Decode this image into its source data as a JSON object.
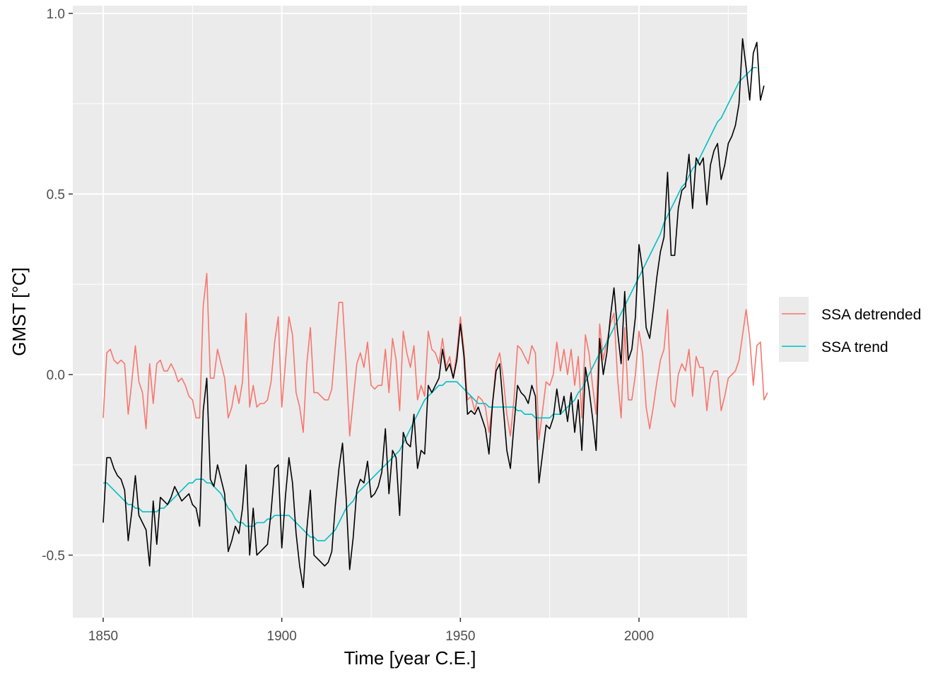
{
  "chart_data": {
    "type": "line",
    "xlabel": "Time [year C.E.]",
    "ylabel": "GMST [°C]",
    "xlim": [
      1842.4,
      2230.6
    ],
    "ylim": [
      -0.67,
      1.02
    ],
    "x_ticks": [
      1850,
      1900,
      1950,
      2000
    ],
    "x_tick_labels": [
      "1850",
      "1900",
      "1950",
      "2000"
    ],
    "y_ticks": [
      -0.5,
      0.0,
      0.5,
      1.0
    ],
    "y_tick_labels": [
      "-0.5",
      "0.0",
      "0.5",
      "1.0"
    ],
    "x_start": 1850,
    "grid": true,
    "legend_position": "right",
    "colors": {
      "panel_background": "#EBEBEB",
      "grid": "#FFFFFF",
      "observed": "#000000",
      "detrended": "#F8766D",
      "trend": "#00BFC4",
      "axis_text": "#4D4D4D",
      "title_text": "#000000"
    },
    "series": [
      {
        "name": "",
        "key": "observed",
        "values": [
          -0.41,
          -0.23,
          -0.23,
          -0.27,
          -0.29,
          -0.29,
          -0.32,
          -0.46,
          -0.39,
          -0.28,
          -0.38,
          -0.4,
          -0.43,
          -0.53,
          -0.35,
          -0.47,
          -0.34,
          -0.35,
          -0.36,
          -0.35,
          -0.31,
          -0.32,
          -0.35,
          -0.39,
          -0.33,
          -0.35,
          -0.37,
          -0.42,
          -0.1,
          -0.01,
          -0.27,
          -0.3,
          -0.25,
          -0.28,
          -0.33,
          -0.48,
          -0.46,
          -0.41,
          -0.44,
          -0.37,
          -0.25,
          -0.5,
          -0.38,
          -0.5,
          -0.49,
          -0.48,
          -0.47,
          -0.38,
          -0.26,
          -0.25,
          -0.48,
          -0.34,
          -0.23,
          -0.3,
          -0.44,
          -0.53,
          -0.59,
          -0.43,
          -0.32,
          -0.5,
          -0.52,
          -0.52,
          -0.53,
          -0.53,
          -0.49,
          -0.36,
          -0.25,
          -0.19,
          -0.34,
          -0.54,
          -0.46,
          -0.32,
          -0.29,
          -0.3,
          -0.24,
          -0.34,
          -0.33,
          -0.31,
          -0.27,
          -0.13,
          -0.33,
          -0.21,
          -0.23,
          -0.39,
          -0.16,
          -0.19,
          -0.2,
          -0.11,
          -0.26,
          -0.21,
          -0.22,
          -0.03,
          -0.05,
          -0.03,
          -0.01,
          0.07,
          0.01,
          0.03,
          0.0,
          0.04,
          0.14,
          0.05,
          -0.11,
          -0.09,
          -0.11,
          -0.08,
          -0.12,
          -0.14,
          -0.22,
          -0.08,
          0.01,
          0.03,
          -0.09,
          -0.21,
          -0.26,
          -0.14,
          -0.03,
          -0.04,
          -0.06,
          -0.08,
          -0.03,
          -0.06,
          -0.3,
          -0.22,
          -0.13,
          -0.15,
          -0.12,
          -0.04,
          -0.11,
          -0.06,
          -0.12,
          -0.05,
          -0.15,
          -0.07,
          -0.21,
          0.02,
          -0.04,
          -0.12,
          -0.21,
          0.1,
          0.0,
          0.07,
          0.18,
          0.24,
          0.11,
          0.04,
          0.23,
          0.04,
          0.06,
          0.16,
          0.35,
          0.29,
          0.12,
          0.1,
          0.17,
          0.27,
          0.34,
          0.4,
          0.56,
          0.33,
          0.32,
          0.46,
          0.51,
          0.52,
          0.61,
          0.46,
          0.6,
          0.57,
          0.6,
          0.47,
          0.58,
          0.62,
          0.64,
          0.53,
          0.58,
          0.64,
          0.66,
          0.7,
          0.74,
          0.82,
          0.86,
          0.88,
          0.82,
          0.76,
          0.84,
          0.86,
          0.78,
          0.8
        ],
        "display_values": [
          -0.41,
          -0.23,
          -0.23,
          -0.26,
          -0.28,
          -0.29,
          -0.32,
          -0.46,
          -0.38,
          -0.28,
          -0.39,
          -0.41,
          -0.43,
          -0.53,
          -0.35,
          -0.47,
          -0.34,
          -0.35,
          -0.36,
          -0.34,
          -0.31,
          -0.33,
          -0.35,
          -0.34,
          -0.33,
          -0.36,
          -0.37,
          -0.42,
          -0.1,
          -0.01,
          -0.29,
          -0.31,
          -0.25,
          -0.29,
          -0.33,
          -0.49,
          -0.46,
          -0.42,
          -0.44,
          -0.37,
          -0.25,
          -0.5,
          -0.37,
          -0.5,
          -0.49,
          -0.48,
          -0.47,
          -0.38,
          -0.26,
          -0.25,
          -0.48,
          -0.34,
          -0.23,
          -0.3,
          -0.44,
          -0.53,
          -0.59,
          -0.43,
          -0.32,
          -0.5,
          -0.51,
          -0.52,
          -0.53,
          -0.52,
          -0.49,
          -0.36,
          -0.26,
          -0.19,
          -0.34,
          -0.54,
          -0.45,
          -0.32,
          -0.29,
          -0.3,
          -0.24,
          -0.34,
          -0.33,
          -0.31,
          -0.27,
          -0.15,
          -0.33,
          -0.21,
          -0.23,
          -0.39,
          -0.16,
          -0.19,
          -0.2,
          -0.11,
          -0.26,
          -0.21,
          -0.22,
          -0.03,
          -0.05,
          -0.03,
          -0.01,
          0.07,
          0.01,
          0.03,
          -0.01,
          0.04,
          0.14,
          0.05,
          -0.11,
          -0.1,
          -0.11,
          -0.09,
          -0.12,
          -0.15,
          -0.22,
          -0.08,
          0.01,
          0.03,
          -0.09,
          -0.21,
          -0.26,
          -0.14,
          -0.03,
          -0.05,
          -0.06,
          -0.08,
          -0.03,
          -0.06,
          -0.3,
          -0.22,
          -0.14,
          -0.15,
          -0.12,
          -0.04,
          -0.11,
          -0.06,
          -0.13,
          -0.05,
          -0.16,
          -0.07,
          -0.21,
          0.02,
          -0.04,
          -0.12,
          -0.21,
          0.1,
          0.0,
          0.06,
          0.16,
          0.24,
          0.12,
          0.03,
          0.23,
          0.04,
          0.07,
          0.16,
          0.36,
          0.29,
          0.13,
          0.1,
          0.18,
          0.27,
          0.34,
          0.38,
          0.56,
          0.33,
          0.33,
          0.46,
          0.51,
          0.52,
          0.61,
          0.46,
          0.6,
          0.58,
          0.6,
          0.47,
          0.58,
          0.62,
          0.64,
          0.54,
          0.58,
          0.64,
          0.66,
          0.69,
          0.75,
          0.93,
          0.85,
          0.76,
          0.89,
          0.92,
          0.76,
          0.8
        ]
      },
      {
        "name": "SSA detrended",
        "key": "detrended",
        "values": [
          -0.12,
          0.06,
          0.07,
          0.05,
          0.04,
          0.04,
          0.03,
          -0.11,
          -0.03,
          0.08,
          -0.02,
          -0.05,
          -0.15,
          0.03,
          -0.08,
          0.03,
          0.04,
          0.01,
          0.01,
          0.03,
          0.01,
          -0.03,
          0.0,
          -0.01,
          -0.04,
          -0.06,
          -0.07,
          -0.12,
          0.19,
          0.28,
          -0.0,
          -0.01,
          0.07,
          0.03,
          -0.01,
          -0.13,
          -0.1,
          -0.04,
          -0.08,
          -0.02,
          0.16,
          -0.09,
          -0.03,
          -0.09,
          -0.08,
          -0.08,
          -0.07,
          -0.02,
          0.09,
          0.16,
          -0.08,
          0.03,
          0.16,
          0.11,
          -0.05,
          -0.09,
          -0.16,
          0.03,
          0.13,
          -0.05,
          -0.06,
          -0.07,
          -0.09,
          -0.08,
          -0.04,
          0.08,
          0.18,
          0.2,
          0.03,
          -0.17,
          -0.07,
          0.03,
          0.06,
          0.03,
          0.09,
          -0.04,
          -0.02,
          -0.03,
          -0.03,
          0.07,
          -0.05,
          0.1,
          0.04,
          -0.1,
          0.12,
          0.06,
          0.02,
          0.08,
          -0.07,
          -0.03,
          -0.06,
          0.12,
          0.07,
          0.06,
          0.03,
          0.08,
          0.02,
          0.05,
          -0.01,
          0.06,
          0.16,
          0.07,
          -0.07,
          -0.06,
          -0.1,
          -0.06,
          -0.07,
          -0.09,
          -0.16,
          -0.08,
          0.04,
          0.06,
          -0.01,
          -0.11,
          -0.17,
          -0.07,
          0.08,
          0.07,
          0.05,
          0.03,
          0.08,
          0.07,
          -0.18,
          -0.1,
          -0.02,
          -0.03,
          0.0,
          0.09,
          0.01,
          0.07,
          0.0,
          0.07,
          -0.03,
          0.05,
          -0.12,
          0.11,
          0.06,
          -0.03,
          -0.11,
          0.14,
          0.04,
          0.09,
          0.14,
          0.17,
          -0.0,
          -0.12,
          0.13,
          -0.07,
          -0.07,
          0.0,
          0.12,
          0.06,
          -0.09,
          -0.15,
          -0.09,
          -0.02,
          0.04,
          0.07,
          0.15,
          -0.07,
          -0.09,
          0.0,
          0.03,
          0.01,
          0.07,
          -0.06,
          0.05,
          0.02,
          0.02,
          -0.1,
          -0.01,
          0.01,
          0.01,
          -0.1,
          -0.06,
          -0.01,
          -0.0,
          0.01,
          0.04,
          0.11,
          0.13,
          0.09,
          0.01,
          -0.05,
          0.01,
          0.02,
          -0.07,
          -0.05
        ],
        "display_values": [
          -0.12,
          0.06,
          0.07,
          0.04,
          0.03,
          0.04,
          0.03,
          -0.11,
          -0.02,
          0.08,
          -0.02,
          -0.05,
          -0.15,
          0.03,
          -0.08,
          0.03,
          0.04,
          0.01,
          0.01,
          0.03,
          0.01,
          -0.02,
          -0.01,
          -0.03,
          -0.06,
          -0.07,
          -0.12,
          -0.12,
          0.19,
          0.28,
          -0.01,
          -0.01,
          0.07,
          0.03,
          -0.01,
          -0.12,
          -0.09,
          -0.03,
          -0.08,
          -0.02,
          0.17,
          -0.09,
          -0.03,
          -0.09,
          -0.08,
          -0.08,
          -0.07,
          -0.02,
          0.09,
          0.16,
          -0.09,
          0.03,
          0.16,
          0.11,
          -0.05,
          -0.09,
          -0.16,
          0.03,
          0.13,
          -0.05,
          -0.05,
          -0.06,
          -0.07,
          -0.07,
          -0.04,
          0.08,
          0.2,
          0.2,
          0.03,
          -0.17,
          -0.07,
          0.03,
          0.06,
          0.02,
          0.09,
          -0.03,
          -0.04,
          -0.03,
          -0.03,
          0.07,
          -0.05,
          0.1,
          0.04,
          -0.1,
          0.12,
          0.06,
          0.02,
          0.08,
          -0.07,
          -0.03,
          -0.06,
          0.12,
          0.07,
          0.06,
          0.03,
          0.1,
          0.02,
          0.05,
          -0.01,
          0.06,
          0.16,
          0.07,
          -0.07,
          -0.06,
          -0.1,
          -0.06,
          -0.07,
          -0.09,
          -0.16,
          -0.08,
          0.03,
          0.06,
          -0.01,
          -0.11,
          -0.17,
          -0.07,
          0.08,
          0.07,
          0.05,
          0.03,
          0.08,
          0.06,
          -0.18,
          -0.1,
          -0.02,
          -0.03,
          0.0,
          0.09,
          0.01,
          0.07,
          0.0,
          0.07,
          -0.03,
          0.05,
          -0.12,
          0.11,
          0.06,
          -0.03,
          -0.11,
          0.14,
          0.04,
          0.09,
          0.14,
          0.17,
          -0.01,
          -0.12,
          0.13,
          -0.07,
          -0.07,
          0.0,
          0.12,
          0.06,
          -0.09,
          -0.15,
          -0.09,
          -0.02,
          0.04,
          0.07,
          0.18,
          -0.07,
          -0.09,
          0.0,
          0.03,
          0.01,
          0.07,
          -0.06,
          0.05,
          0.02,
          0.02,
          -0.1,
          -0.01,
          0.01,
          0.01,
          -0.1,
          -0.06,
          -0.01,
          0.0,
          0.01,
          0.04,
          0.11,
          0.18,
          0.1,
          -0.03,
          0.08,
          0.09,
          -0.07,
          -0.05
        ]
      },
      {
        "name": "SSA trend",
        "key": "trend",
        "values": [
          -0.3,
          -0.3,
          -0.31,
          -0.32,
          -0.33,
          -0.34,
          -0.35,
          -0.36,
          -0.36,
          -0.37,
          -0.37,
          -0.38,
          -0.38,
          -0.38,
          -0.38,
          -0.38,
          -0.37,
          -0.37,
          -0.36,
          -0.36,
          -0.35,
          -0.34,
          -0.33,
          -0.32,
          -0.31,
          -0.3,
          -0.3,
          -0.29,
          -0.29,
          -0.29,
          -0.3,
          -0.3,
          -0.31,
          -0.33,
          -0.34,
          -0.36,
          -0.38,
          -0.39,
          -0.41,
          -0.41,
          -0.42,
          -0.42,
          -0.42,
          -0.42,
          -0.41,
          -0.41,
          -0.4,
          -0.4,
          -0.39,
          -0.39,
          -0.39,
          -0.39,
          -0.39,
          -0.4,
          -0.41,
          -0.42,
          -0.43,
          -0.44,
          -0.45,
          -0.45,
          -0.46,
          -0.46,
          -0.46,
          -0.45,
          -0.44,
          -0.43,
          -0.41,
          -0.39,
          -0.37,
          -0.36,
          -0.35,
          -0.33,
          -0.32,
          -0.31,
          -0.3,
          -0.29,
          -0.28,
          -0.27,
          -0.26,
          -0.25,
          -0.24,
          -0.23,
          -0.22,
          -0.21,
          -0.19,
          -0.17,
          -0.15,
          -0.13,
          -0.11,
          -0.09,
          -0.07,
          -0.06,
          -0.05,
          -0.04,
          -0.03,
          -0.03,
          -0.02,
          -0.02,
          -0.02,
          -0.02,
          -0.03,
          -0.04,
          -0.05,
          -0.06,
          -0.07,
          -0.08,
          -0.08,
          -0.08,
          -0.09,
          -0.09,
          -0.09,
          -0.09,
          -0.09,
          -0.09,
          -0.09,
          -0.09,
          -0.1,
          -0.1,
          -0.11,
          -0.11,
          -0.11,
          -0.12,
          -0.12,
          -0.12,
          -0.12,
          -0.12,
          -0.11,
          -0.11,
          -0.11,
          -0.1,
          -0.09,
          -0.08,
          -0.07,
          -0.05,
          -0.04,
          -0.02,
          0.0,
          0.02,
          0.04,
          0.06,
          0.07,
          0.09,
          0.11,
          0.13,
          0.15,
          0.17,
          0.19,
          0.21,
          0.23,
          0.25,
          0.27,
          0.29,
          0.31,
          0.33,
          0.35,
          0.37,
          0.39,
          0.42,
          0.44,
          0.46,
          0.48,
          0.5,
          0.52,
          0.53,
          0.55,
          0.57,
          0.58,
          0.6,
          0.62,
          0.64,
          0.66,
          0.68,
          0.7,
          0.71,
          0.73,
          0.75,
          0.77,
          0.79,
          0.81,
          0.82,
          0.83,
          0.84,
          0.85,
          0.85
        ],
        "display_values": [
          -0.3,
          -0.3,
          -0.31,
          -0.32,
          -0.33,
          -0.34,
          -0.35,
          -0.36,
          -0.36,
          -0.37,
          -0.37,
          -0.38,
          -0.38,
          -0.38,
          -0.38,
          -0.38,
          -0.37,
          -0.37,
          -0.36,
          -0.35,
          -0.34,
          -0.33,
          -0.32,
          -0.31,
          -0.3,
          -0.3,
          -0.29,
          -0.29,
          -0.29,
          -0.3,
          -0.3,
          -0.31,
          -0.32,
          -0.33,
          -0.35,
          -0.37,
          -0.38,
          -0.4,
          -0.41,
          -0.41,
          -0.42,
          -0.42,
          -0.42,
          -0.41,
          -0.41,
          -0.41,
          -0.4,
          -0.4,
          -0.39,
          -0.39,
          -0.39,
          -0.39,
          -0.39,
          -0.4,
          -0.41,
          -0.42,
          -0.43,
          -0.44,
          -0.45,
          -0.45,
          -0.46,
          -0.46,
          -0.46,
          -0.45,
          -0.44,
          -0.43,
          -0.41,
          -0.39,
          -0.37,
          -0.36,
          -0.35,
          -0.33,
          -0.32,
          -0.31,
          -0.3,
          -0.29,
          -0.28,
          -0.27,
          -0.26,
          -0.25,
          -0.24,
          -0.23,
          -0.22,
          -0.21,
          -0.19,
          -0.17,
          -0.15,
          -0.13,
          -0.11,
          -0.09,
          -0.07,
          -0.06,
          -0.05,
          -0.04,
          -0.03,
          -0.03,
          -0.02,
          -0.02,
          -0.02,
          -0.02,
          -0.03,
          -0.04,
          -0.05,
          -0.06,
          -0.07,
          -0.08,
          -0.08,
          -0.08,
          -0.09,
          -0.09,
          -0.09,
          -0.09,
          -0.09,
          -0.09,
          -0.09,
          -0.09,
          -0.1,
          -0.1,
          -0.11,
          -0.11,
          -0.11,
          -0.12,
          -0.12,
          -0.12,
          -0.12,
          -0.12,
          -0.11,
          -0.11,
          -0.11,
          -0.1,
          -0.09,
          -0.08,
          -0.07,
          -0.05,
          -0.04,
          -0.02,
          0.0,
          0.02,
          0.04,
          0.06,
          0.07,
          0.09,
          0.11,
          0.13,
          0.15,
          0.17,
          0.19,
          0.21,
          0.23,
          0.25,
          0.27,
          0.29,
          0.31,
          0.33,
          0.35,
          0.37,
          0.39,
          0.42,
          0.44,
          0.46,
          0.48,
          0.5,
          0.52,
          0.53,
          0.55,
          0.57,
          0.58,
          0.6,
          0.62,
          0.64,
          0.66,
          0.68,
          0.7,
          0.71,
          0.73,
          0.75,
          0.77,
          0.79,
          0.81,
          0.82,
          0.83,
          0.84,
          0.85,
          0.85
        ]
      }
    ]
  }
}
